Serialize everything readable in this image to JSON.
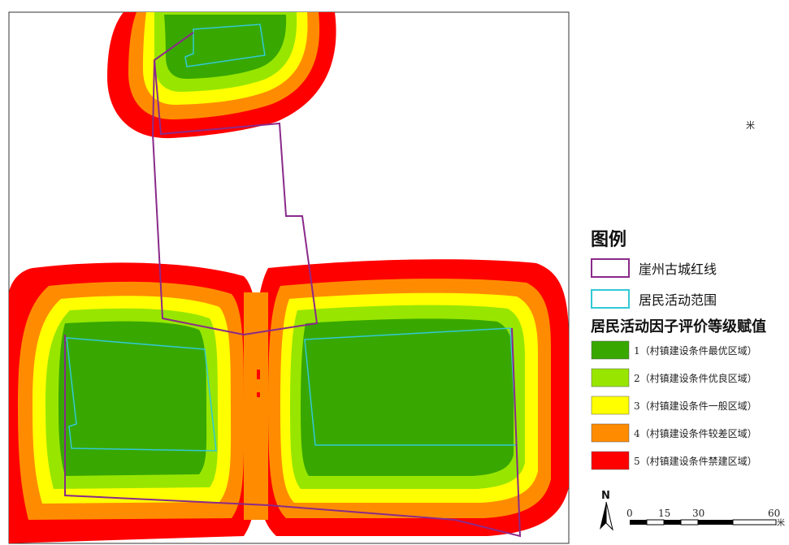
{
  "legend": {
    "title": "图例",
    "boundary_items": [
      {
        "label": "崖州古城红线",
        "color": "#8a2a8a"
      },
      {
        "label": "居民活动范围",
        "color": "#33c9d6"
      }
    ],
    "factor_title": "居民活动因子评价等级赋值",
    "classes": [
      {
        "label": "1（村镇建设条件最优区域）",
        "color": "#38a800"
      },
      {
        "label": "2（村镇建设条件优良区域）",
        "color": "#98e600"
      },
      {
        "label": "3（村镇建设条件一般区域）",
        "color": "#ffff00"
      },
      {
        "label": "4（村镇建设条件较差区域）",
        "color": "#ff8c00"
      },
      {
        "label": "5（村镇建设条件禁建区域）",
        "color": "#ff0000"
      }
    ]
  },
  "north_arrow": {
    "label": "N"
  },
  "scale_bar": {
    "ticks": [
      "0",
      "15",
      "30",
      "60"
    ],
    "unit": "米"
  },
  "stray_unit": "米"
}
